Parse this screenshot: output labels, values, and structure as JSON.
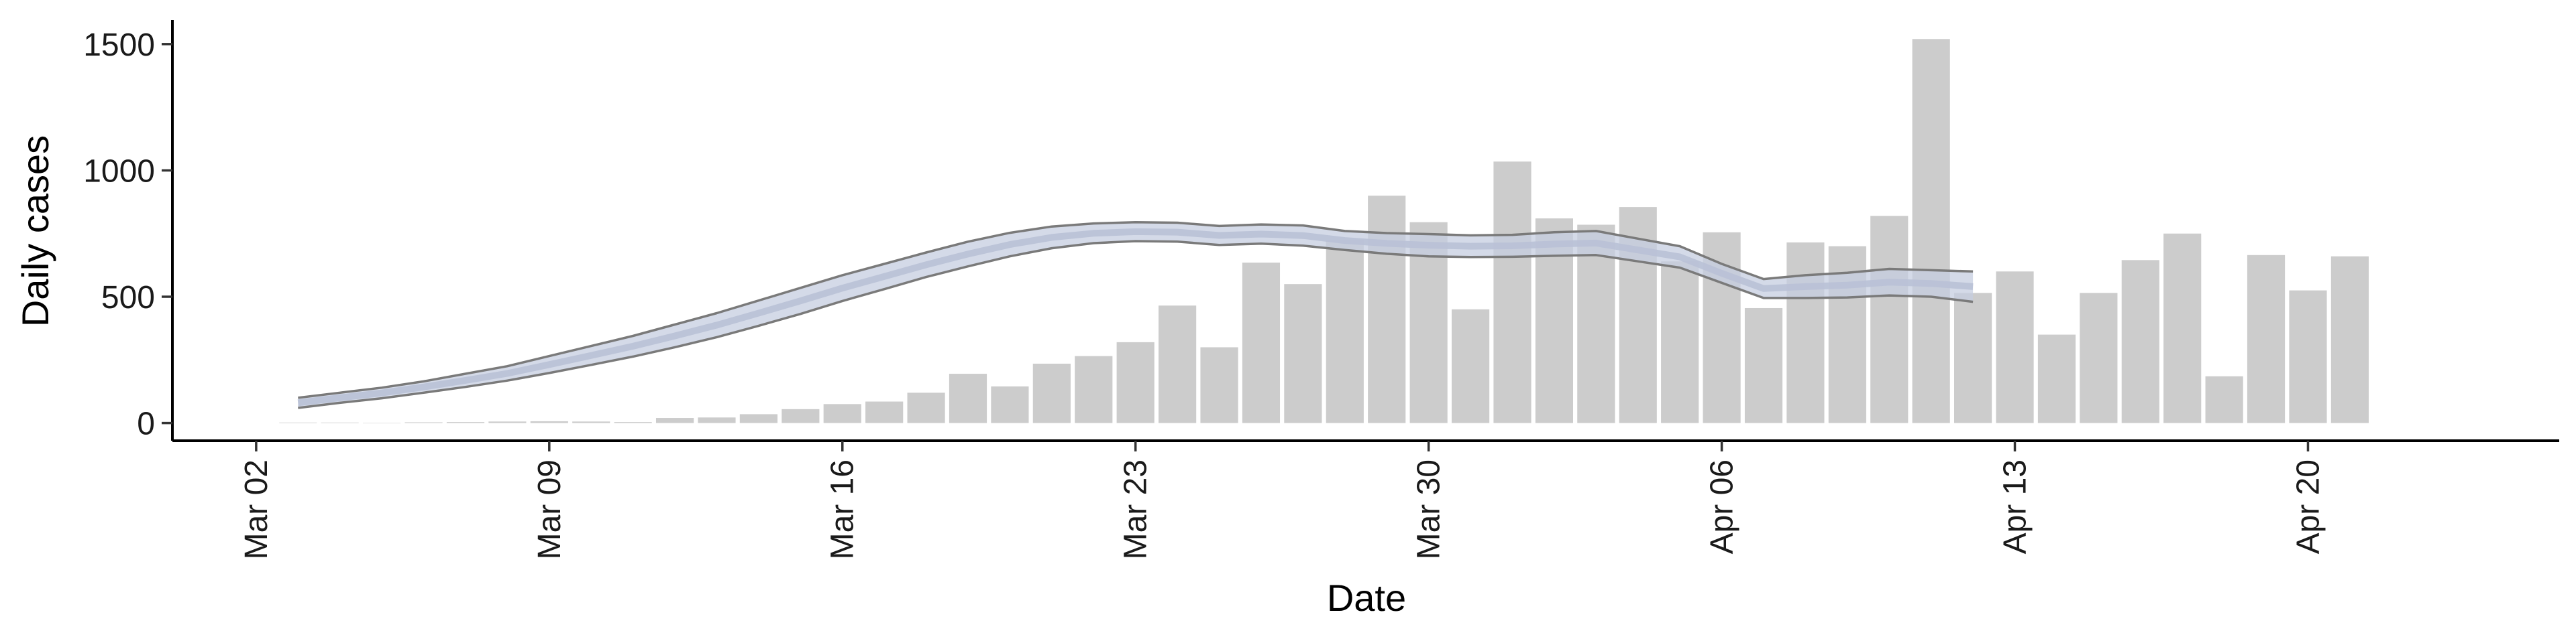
{
  "chart_data": {
    "type": "bar",
    "xlabel": "Date",
    "ylabel": "Daily cases",
    "ylim": [
      -70,
      1595
    ],
    "y_ticks": [
      0,
      500,
      1000,
      1500
    ],
    "x_range": [
      "2020-02-29",
      "2020-04-26"
    ],
    "x_ticks": [
      {
        "date": "2020-03-02",
        "label": "Mar 02"
      },
      {
        "date": "2020-03-09",
        "label": "Mar 09"
      },
      {
        "date": "2020-03-16",
        "label": "Mar 16"
      },
      {
        "date": "2020-03-23",
        "label": "Mar 23"
      },
      {
        "date": "2020-03-30",
        "label": "Mar 30"
      },
      {
        "date": "2020-04-06",
        "label": "Apr 06"
      },
      {
        "date": "2020-04-13",
        "label": "Apr 13"
      },
      {
        "date": "2020-04-20",
        "label": "Apr 20"
      }
    ],
    "grid": false,
    "legend": "none",
    "bars": {
      "color": "#cccccc",
      "dates": [
        "2020-03-03",
        "2020-03-04",
        "2020-03-05",
        "2020-03-06",
        "2020-03-07",
        "2020-03-08",
        "2020-03-09",
        "2020-03-10",
        "2020-03-11",
        "2020-03-12",
        "2020-03-13",
        "2020-03-14",
        "2020-03-15",
        "2020-03-16",
        "2020-03-17",
        "2020-03-18",
        "2020-03-19",
        "2020-03-20",
        "2020-03-21",
        "2020-03-22",
        "2020-03-23",
        "2020-03-24",
        "2020-03-25",
        "2020-03-26",
        "2020-03-27",
        "2020-03-28",
        "2020-03-29",
        "2020-03-30",
        "2020-03-31",
        "2020-04-01",
        "2020-04-02",
        "2020-04-03",
        "2020-04-04",
        "2020-04-05",
        "2020-04-06",
        "2020-04-07",
        "2020-04-08",
        "2020-04-09",
        "2020-04-10",
        "2020-04-11",
        "2020-04-12",
        "2020-04-13",
        "2020-04-14",
        "2020-04-15",
        "2020-04-16",
        "2020-04-17",
        "2020-04-18",
        "2020-04-19",
        "2020-04-20",
        "2020-04-21"
      ],
      "values": [
        2,
        2,
        0,
        3,
        4,
        6,
        7,
        6,
        4,
        20,
        22,
        35,
        55,
        75,
        85,
        120,
        195,
        145,
        235,
        265,
        320,
        465,
        300,
        635,
        550,
        725,
        900,
        795,
        450,
        1035,
        810,
        785,
        855,
        640,
        755,
        455,
        715,
        700,
        820,
        1520,
        515,
        600,
        350,
        515,
        645,
        750,
        185,
        665,
        525,
        660
      ]
    },
    "series": [
      {
        "type": "band",
        "fill": "#c6cde0",
        "edge": "#7a7a7a",
        "center": "#b9c1d6",
        "dates": [
          "2020-03-03",
          "2020-03-04",
          "2020-03-05",
          "2020-03-06",
          "2020-03-07",
          "2020-03-08",
          "2020-03-09",
          "2020-03-10",
          "2020-03-11",
          "2020-03-12",
          "2020-03-13",
          "2020-03-14",
          "2020-03-15",
          "2020-03-16",
          "2020-03-17",
          "2020-03-18",
          "2020-03-19",
          "2020-03-20",
          "2020-03-21",
          "2020-03-22",
          "2020-03-23",
          "2020-03-24",
          "2020-03-25",
          "2020-03-26",
          "2020-03-27",
          "2020-03-28",
          "2020-03-29",
          "2020-03-30",
          "2020-03-31",
          "2020-04-01",
          "2020-04-02",
          "2020-04-03",
          "2020-04-04",
          "2020-04-05",
          "2020-04-06",
          "2020-04-07",
          "2020-04-08",
          "2020-04-09",
          "2020-04-10",
          "2020-04-11",
          "2020-04-12"
        ],
        "upper": [
          100,
          120,
          140,
          165,
          195,
          225,
          265,
          305,
          345,
          390,
          435,
          485,
          535,
          585,
          630,
          675,
          718,
          753,
          778,
          790,
          795,
          793,
          780,
          786,
          782,
          760,
          752,
          748,
          743,
          745,
          755,
          760,
          730,
          700,
          630,
          570,
          585,
          595,
          610,
          605,
          600
        ],
        "lower": [
          60,
          80,
          98,
          120,
          143,
          168,
          198,
          230,
          263,
          300,
          340,
          385,
          432,
          483,
          530,
          578,
          620,
          660,
          692,
          712,
          720,
          718,
          705,
          710,
          702,
          685,
          670,
          660,
          657,
          658,
          662,
          665,
          640,
          615,
          555,
          495,
          495,
          497,
          505,
          500,
          480
        ]
      }
    ]
  }
}
